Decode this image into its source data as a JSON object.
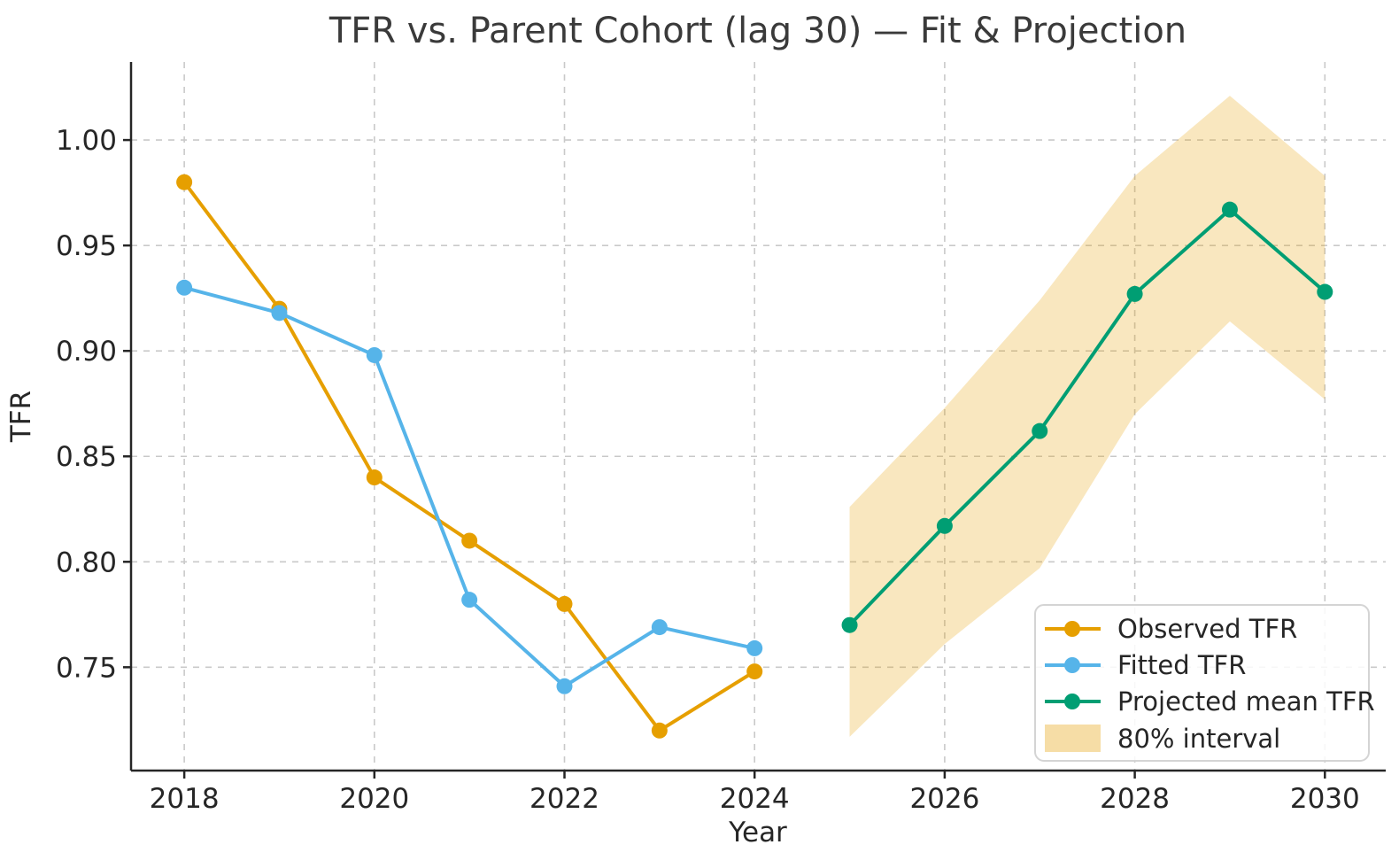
{
  "chart_data": {
    "type": "line",
    "title": "TFR vs. Parent Cohort (lag 30) — Fit & Projection",
    "xlabel": "Year",
    "ylabel": "TFR",
    "x_ticks": [
      2018,
      2020,
      2022,
      2024,
      2026,
      2028,
      2030
    ],
    "y_ticks": [
      0.75,
      0.8,
      0.85,
      0.9,
      0.95,
      1.0
    ],
    "xlim": [
      2017.44,
      2030.64
    ],
    "ylim": [
      0.701,
      1.037
    ],
    "grid": true,
    "grid_style": "dashed",
    "legend_position": "lower right",
    "series": [
      {
        "name": "Observed TFR",
        "type": "line",
        "color": "#E69F00",
        "x": [
          2018,
          2019,
          2020,
          2021,
          2022,
          2023,
          2024
        ],
        "values": [
          0.98,
          0.92,
          0.84,
          0.81,
          0.78,
          0.72,
          0.748
        ]
      },
      {
        "name": "Fitted TFR",
        "type": "line",
        "color": "#56B4E9",
        "x": [
          2018,
          2019,
          2020,
          2021,
          2022,
          2023,
          2024
        ],
        "values": [
          0.93,
          0.918,
          0.898,
          0.782,
          0.741,
          0.769,
          0.759
        ]
      },
      {
        "name": "Projected mean TFR",
        "type": "line",
        "color": "#009E73",
        "x": [
          2025,
          2026,
          2027,
          2028,
          2029,
          2030
        ],
        "values": [
          0.77,
          0.817,
          0.862,
          0.927,
          0.967,
          0.928
        ]
      },
      {
        "name": "80% interval",
        "type": "band",
        "color": "#E69F00",
        "opacity": 0.25,
        "x": [
          2025,
          2026,
          2027,
          2028,
          2029,
          2030
        ],
        "lower": [
          0.717,
          0.761,
          0.797,
          0.87,
          0.914,
          0.877
        ],
        "upper": [
          0.826,
          0.873,
          0.924,
          0.983,
          1.021,
          0.983
        ]
      }
    ]
  },
  "colors": {
    "axis": "#262626",
    "grid": "#c9c9c9",
    "title": "#3a3a3a",
    "legend_border": "#d4d4d4"
  }
}
